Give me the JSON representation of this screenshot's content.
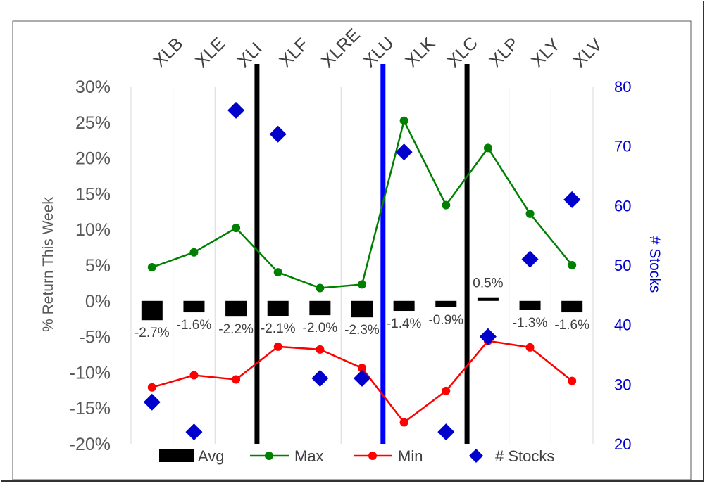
{
  "chart_data": {
    "type": "line",
    "categories": [
      "XLB",
      "XLE",
      "XLI",
      "XLF",
      "XLRE",
      "XLU",
      "XLK",
      "XLC",
      "XLP",
      "XLY",
      "XLV"
    ],
    "ylabel": "% Return This Week",
    "y2label": "# Stocks",
    "ylim": [
      -20,
      30
    ],
    "y2lim": [
      20,
      80
    ],
    "y_ticks": [
      "30%",
      "25%",
      "20%",
      "15%",
      "10%",
      "5%",
      "0%",
      "-5%",
      "-10%",
      "-15%",
      "-20%"
    ],
    "y2_ticks": [
      "80",
      "70",
      "60",
      "50",
      "40",
      "30",
      "20"
    ],
    "grid": "vertical",
    "legend_position": "bottom",
    "series": [
      {
        "name": "Avg",
        "kind": "bar",
        "color": "#000000",
        "values": [
          -2.7,
          -1.6,
          -2.2,
          -2.1,
          -2.0,
          -2.3,
          -1.4,
          -0.9,
          0.5,
          -1.3,
          -1.6
        ],
        "labels": [
          "-2.7%",
          "-1.6%",
          "-2.2%",
          "-2.1%",
          "-2.0%",
          "-2.3%",
          "-1.4%",
          "-0.9%",
          "0.5%",
          "-1.3%",
          "-1.6%"
        ]
      },
      {
        "name": "Max",
        "kind": "line",
        "color": "#008000",
        "values": [
          4.7,
          6.8,
          10.2,
          4.0,
          1.8,
          2.3,
          25.2,
          13.4,
          21.4,
          12.2,
          5.0
        ]
      },
      {
        "name": "Min",
        "kind": "line",
        "color": "#ff0000",
        "values": [
          -12.1,
          -10.4,
          -11.0,
          -6.4,
          -6.8,
          -9.4,
          -17.0,
          -12.6,
          -5.6,
          -6.5,
          -11.2
        ]
      },
      {
        "name": "# Stocks",
        "kind": "scatter",
        "axis": "right",
        "color": "#0000cc",
        "values": [
          27,
          22,
          76,
          72,
          31,
          31,
          69,
          22,
          38,
          51,
          61
        ]
      }
    ],
    "separators": [
      {
        "after_index": 2,
        "color": "#000000"
      },
      {
        "after_index": 5,
        "color": "#0000ff"
      },
      {
        "after_index": 7,
        "color": "#000000"
      }
    ]
  }
}
